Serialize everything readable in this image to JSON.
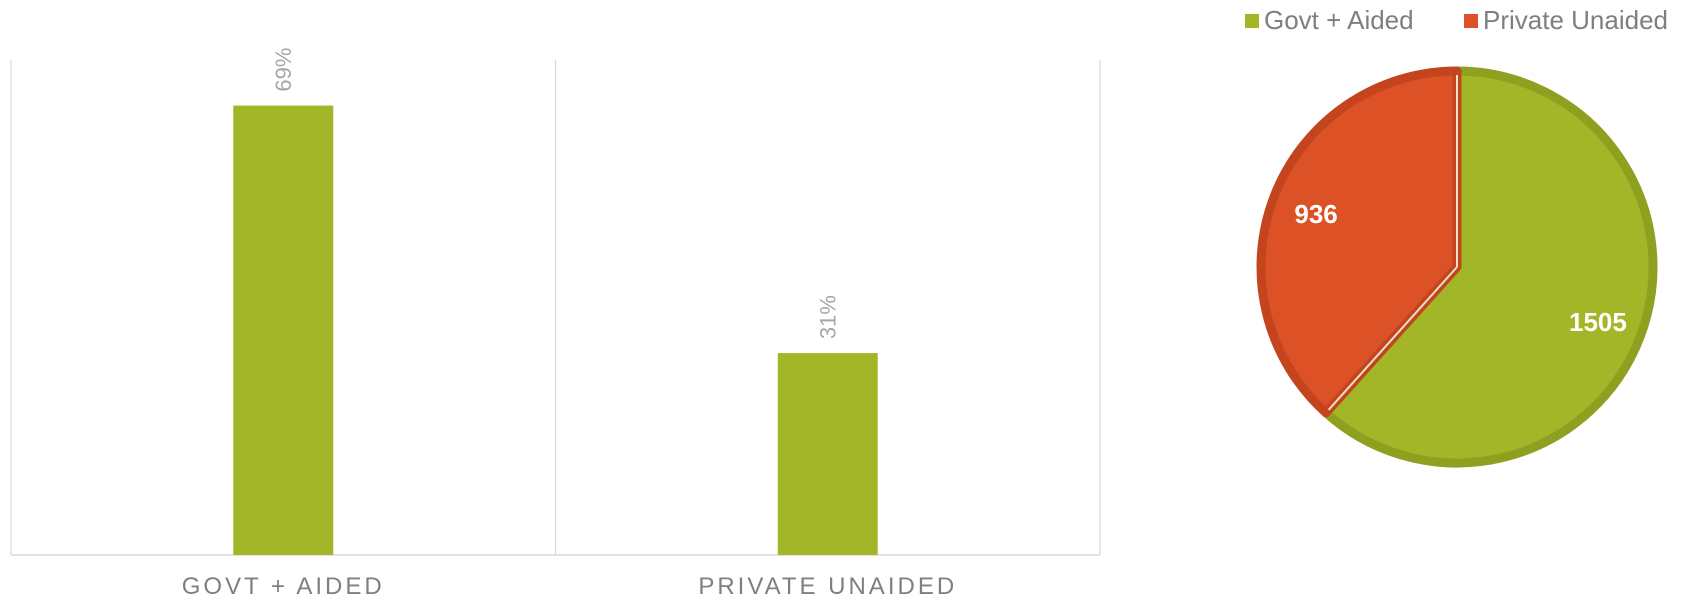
{
  "colors": {
    "green": "#a3b628",
    "green_edge": "#8fa021",
    "orange": "#dc5226",
    "orange_edge": "#c4451d",
    "axis": "#d9d9d9"
  },
  "chart_data": [
    {
      "type": "bar",
      "categories": [
        "GOVT + AIDED",
        "PRIVATE UNAIDED"
      ],
      "values": [
        69,
        31
      ],
      "data_labels": [
        "69%",
        "31%"
      ],
      "ylim": [
        0,
        76
      ],
      "grid": "vertical category separators",
      "legend": "none"
    },
    {
      "type": "pie",
      "labels": [
        "Govt + Aided",
        "Private Unaided"
      ],
      "values": [
        1505,
        936
      ],
      "data_labels": [
        "1505",
        "936"
      ],
      "legend": "top"
    }
  ]
}
